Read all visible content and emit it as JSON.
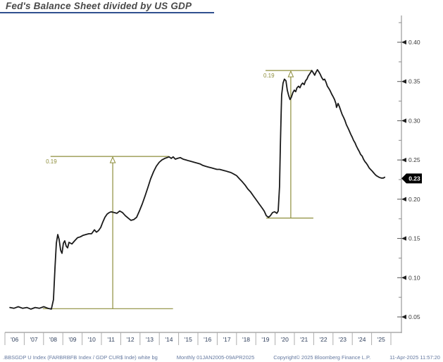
{
  "title": "Fed's Balance Sheet divided by US GDP",
  "colors": {
    "line": "#1a1a1a",
    "annotation": "#8e8e3c",
    "badge_bg": "#000000",
    "badge_text": "#ffffff",
    "axis": "#9a9a9a",
    "separator": "#adadad",
    "y_label": "#3a3a3a",
    "x_label": "#2f3f5c",
    "title_text": "#4a4a4a",
    "title_underline": "#30508f",
    "footer_text": "#6579a0"
  },
  "last_value": {
    "label": "0.23",
    "value": 0.2265
  },
  "y_axis": {
    "major": [
      {
        "value": 0.4,
        "label": "0.40"
      },
      {
        "value": 0.35,
        "label": "0.35"
      },
      {
        "value": 0.3,
        "label": "0.30"
      },
      {
        "value": 0.25,
        "label": "0.25"
      },
      {
        "value": 0.2,
        "label": "0.20"
      },
      {
        "value": 0.15,
        "label": "0.15"
      },
      {
        "value": 0.1,
        "label": "0.10"
      },
      {
        "value": 0.05,
        "label": "0.05"
      }
    ],
    "minor": [
      0.425,
      0.375,
      0.325,
      0.275,
      0.225,
      0.175,
      0.125,
      0.075
    ]
  },
  "x_axis": {
    "labels": [
      "'06",
      "'07",
      "'08",
      "'09",
      "'10",
      "'11",
      "'12",
      "'13",
      "'14",
      "'15",
      "'16",
      "'17",
      "'18",
      "'19",
      "'20",
      "'21",
      "'22",
      "'23",
      "'24",
      "'25"
    ]
  },
  "annotations": [
    {
      "label": "0.19",
      "top_value": 0.2545,
      "bottom_value": 0.0605,
      "top_from": 2008.1,
      "top_to": 2014.2,
      "bottom_from": 2007.7,
      "bottom_to": 2014.4,
      "arrow_at": 2011.3,
      "label_t": 2007.86
    },
    {
      "label": "0.19",
      "top_value": 0.364,
      "bottom_value": 0.176,
      "top_from": 2019.16,
      "top_to": 2021.55,
      "bottom_from": 2019.2,
      "bottom_to": 2021.62,
      "arrow_at": 2020.46,
      "label_t": 2019.05
    }
  ],
  "footer": {
    "ticker_info": ".BBSGDP U Index (FARBRBFB Index / GDP CUR$ Inde) white bg",
    "periodicity": "Monthly 01JAN2005-09APR2025",
    "copyright": "Copyright© 2025 Bloomberg Finance L.P.",
    "timestamp": "11-Apr-2025 11:57:20"
  },
  "chart_data": {
    "type": "line",
    "title": "Fed's Balance Sheet divided by US GDP",
    "x_unit": "year",
    "xlim": [
      2005.9,
      2025.4
    ],
    "ylim": [
      0.04,
      0.425
    ],
    "grid": false,
    "legend": "none",
    "series": [
      {
        "name": ".BBSGDP U Index (Fed Balance Sheet / US GDP)",
        "points": [
          [
            2006.01,
            0.062
          ],
          [
            2006.22,
            0.061
          ],
          [
            2006.44,
            0.063
          ],
          [
            2006.66,
            0.061
          ],
          [
            2006.88,
            0.062
          ],
          [
            2007.09,
            0.06
          ],
          [
            2007.31,
            0.062
          ],
          [
            2007.53,
            0.061
          ],
          [
            2007.75,
            0.063
          ],
          [
            2007.96,
            0.061
          ],
          [
            2008.14,
            0.06
          ],
          [
            2008.25,
            0.072
          ],
          [
            2008.33,
            0.113
          ],
          [
            2008.4,
            0.144
          ],
          [
            2008.47,
            0.155
          ],
          [
            2008.54,
            0.149
          ],
          [
            2008.62,
            0.135
          ],
          [
            2008.69,
            0.131
          ],
          [
            2008.76,
            0.144
          ],
          [
            2008.83,
            0.147
          ],
          [
            2008.91,
            0.14
          ],
          [
            2008.98,
            0.138
          ],
          [
            2009.05,
            0.145
          ],
          [
            2009.2,
            0.143
          ],
          [
            2009.34,
            0.147
          ],
          [
            2009.49,
            0.151
          ],
          [
            2009.63,
            0.152
          ],
          [
            2009.78,
            0.154
          ],
          [
            2009.92,
            0.155
          ],
          [
            2010.07,
            0.156
          ],
          [
            2010.21,
            0.156
          ],
          [
            2010.36,
            0.161
          ],
          [
            2010.46,
            0.158
          ],
          [
            2010.57,
            0.16
          ],
          [
            2010.68,
            0.164
          ],
          [
            2010.79,
            0.171
          ],
          [
            2010.9,
            0.177
          ],
          [
            2011.01,
            0.181
          ],
          [
            2011.12,
            0.183
          ],
          [
            2011.22,
            0.184
          ],
          [
            2011.37,
            0.183
          ],
          [
            2011.51,
            0.182
          ],
          [
            2011.66,
            0.185
          ],
          [
            2011.8,
            0.183
          ],
          [
            2011.95,
            0.179
          ],
          [
            2012.09,
            0.176
          ],
          [
            2012.24,
            0.173
          ],
          [
            2012.38,
            0.174
          ],
          [
            2012.53,
            0.177
          ],
          [
            2012.67,
            0.185
          ],
          [
            2012.82,
            0.194
          ],
          [
            2012.96,
            0.204
          ],
          [
            2013.11,
            0.215
          ],
          [
            2013.25,
            0.226
          ],
          [
            2013.4,
            0.235
          ],
          [
            2013.54,
            0.242
          ],
          [
            2013.69,
            0.247
          ],
          [
            2013.83,
            0.25
          ],
          [
            2013.98,
            0.252
          ],
          [
            2014.09,
            0.253
          ],
          [
            2014.2,
            0.254
          ],
          [
            2014.31,
            0.252
          ],
          [
            2014.41,
            0.254
          ],
          [
            2014.52,
            0.251
          ],
          [
            2014.63,
            0.252
          ],
          [
            2014.78,
            0.253
          ],
          [
            2014.92,
            0.251
          ],
          [
            2015.07,
            0.25
          ],
          [
            2015.21,
            0.249
          ],
          [
            2015.36,
            0.248
          ],
          [
            2015.5,
            0.247
          ],
          [
            2015.65,
            0.246
          ],
          [
            2015.79,
            0.245
          ],
          [
            2015.94,
            0.243
          ],
          [
            2016.08,
            0.242
          ],
          [
            2016.22,
            0.241
          ],
          [
            2016.37,
            0.24
          ],
          [
            2016.51,
            0.239
          ],
          [
            2016.66,
            0.238
          ],
          [
            2016.8,
            0.238
          ],
          [
            2016.95,
            0.237
          ],
          [
            2017.1,
            0.236
          ],
          [
            2017.24,
            0.235
          ],
          [
            2017.38,
            0.234
          ],
          [
            2017.53,
            0.232
          ],
          [
            2017.67,
            0.23
          ],
          [
            2017.82,
            0.226
          ],
          [
            2017.97,
            0.222
          ],
          [
            2018.11,
            0.218
          ],
          [
            2018.25,
            0.213
          ],
          [
            2018.4,
            0.209
          ],
          [
            2018.54,
            0.204
          ],
          [
            2018.69,
            0.199
          ],
          [
            2018.83,
            0.194
          ],
          [
            2018.98,
            0.189
          ],
          [
            2019.09,
            0.185
          ],
          [
            2019.2,
            0.179
          ],
          [
            2019.31,
            0.177
          ],
          [
            2019.41,
            0.179
          ],
          [
            2019.52,
            0.183
          ],
          [
            2019.63,
            0.184
          ],
          [
            2019.74,
            0.182
          ],
          [
            2019.81,
            0.185
          ],
          [
            2019.88,
            0.216
          ],
          [
            2019.92,
            0.265
          ],
          [
            2019.96,
            0.306
          ],
          [
            2019.99,
            0.333
          ],
          [
            2020.06,
            0.348
          ],
          [
            2020.13,
            0.353
          ],
          [
            2020.21,
            0.351
          ],
          [
            2020.28,
            0.339
          ],
          [
            2020.35,
            0.332
          ],
          [
            2020.42,
            0.327
          ],
          [
            2020.49,
            0.33
          ],
          [
            2020.57,
            0.336
          ],
          [
            2020.64,
            0.339
          ],
          [
            2020.71,
            0.337
          ],
          [
            2020.78,
            0.342
          ],
          [
            2020.86,
            0.344
          ],
          [
            2020.93,
            0.342
          ],
          [
            2021.0,
            0.346
          ],
          [
            2021.07,
            0.348
          ],
          [
            2021.15,
            0.346
          ],
          [
            2021.22,
            0.351
          ],
          [
            2021.29,
            0.353
          ],
          [
            2021.36,
            0.357
          ],
          [
            2021.44,
            0.36
          ],
          [
            2021.54,
            0.364
          ],
          [
            2021.62,
            0.361
          ],
          [
            2021.69,
            0.358
          ],
          [
            2021.76,
            0.362
          ],
          [
            2021.83,
            0.365
          ],
          [
            2021.91,
            0.362
          ],
          [
            2021.98,
            0.359
          ],
          [
            2022.05,
            0.355
          ],
          [
            2022.13,
            0.352
          ],
          [
            2022.2,
            0.353
          ],
          [
            2022.27,
            0.349
          ],
          [
            2022.34,
            0.344
          ],
          [
            2022.42,
            0.341
          ],
          [
            2022.49,
            0.338
          ],
          [
            2022.56,
            0.334
          ],
          [
            2022.63,
            0.331
          ],
          [
            2022.71,
            0.327
          ],
          [
            2022.78,
            0.322
          ],
          [
            2022.81,
            0.317
          ],
          [
            2022.89,
            0.322
          ],
          [
            2022.96,
            0.318
          ],
          [
            2023.03,
            0.313
          ],
          [
            2023.1,
            0.308
          ],
          [
            2023.18,
            0.304
          ],
          [
            2023.25,
            0.3
          ],
          [
            2023.32,
            0.295
          ],
          [
            2023.4,
            0.291
          ],
          [
            2023.47,
            0.287
          ],
          [
            2023.54,
            0.283
          ],
          [
            2023.62,
            0.279
          ],
          [
            2023.69,
            0.275
          ],
          [
            2023.76,
            0.272
          ],
          [
            2023.83,
            0.268
          ],
          [
            2023.91,
            0.264
          ],
          [
            2023.98,
            0.261
          ],
          [
            2024.05,
            0.257
          ],
          [
            2024.13,
            0.255
          ],
          [
            2024.2,
            0.251
          ],
          [
            2024.27,
            0.248
          ],
          [
            2024.34,
            0.246
          ],
          [
            2024.42,
            0.243
          ],
          [
            2024.49,
            0.24
          ],
          [
            2024.56,
            0.238
          ],
          [
            2024.64,
            0.236
          ],
          [
            2024.71,
            0.234
          ],
          [
            2024.78,
            0.232
          ],
          [
            2024.86,
            0.23
          ],
          [
            2024.93,
            0.229
          ],
          [
            2025.0,
            0.228
          ],
          [
            2025.11,
            0.227
          ],
          [
            2025.22,
            0.227
          ],
          [
            2025.29,
            0.228
          ]
        ]
      }
    ]
  }
}
